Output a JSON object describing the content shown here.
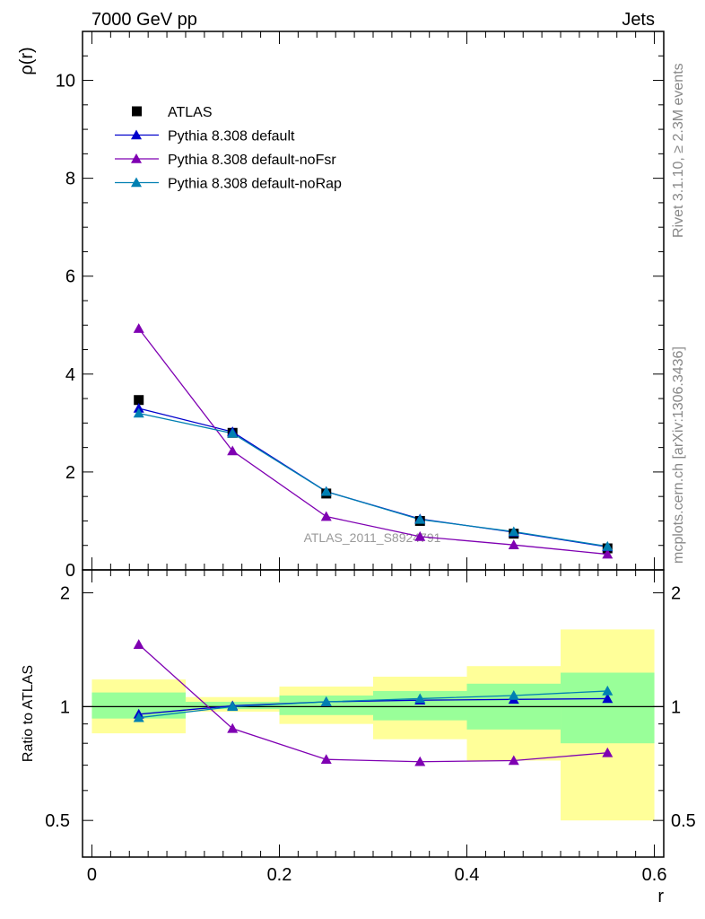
{
  "header": {
    "left": "7000 GeV pp",
    "right": "Jets"
  },
  "side": {
    "rivet": "Rivet 3.1.10, ≥ 2.3M events",
    "mcplots": "mcplots.cern.ch [arXiv:1306.3436]"
  },
  "watermark": "ATLAS_2011_S8924791",
  "colors": {
    "atlas": "#000000",
    "default": "#0000cc",
    "noFsr": "#7f00b2",
    "noRap": "#0080b2",
    "band_outer": "#ffff99",
    "band_inner": "#99ff99"
  },
  "chart_data": [
    {
      "type": "scatter",
      "panel": "main",
      "ylabel": "ρ(r)",
      "xlim": [
        -0.01,
        0.61
      ],
      "ylim": [
        0,
        11
      ],
      "yticks": [
        0,
        2,
        4,
        6,
        8,
        10
      ],
      "ytick_labels": [
        "0",
        "2",
        "4",
        "6",
        "8",
        "10"
      ],
      "legend_position": "top-left",
      "series": [
        {
          "name": "ATLAS",
          "marker": "square",
          "color_key": "atlas",
          "x": [
            0.05,
            0.15,
            0.25,
            0.35,
            0.45,
            0.55
          ],
          "y": [
            3.47,
            2.8,
            1.56,
            1.0,
            0.74,
            0.44
          ]
        },
        {
          "name": "Pythia 8.308 default",
          "marker": "triangle",
          "color_key": "default",
          "x": [
            0.05,
            0.15,
            0.25,
            0.35,
            0.45,
            0.55
          ],
          "y": [
            3.3,
            2.82,
            1.6,
            1.04,
            0.77,
            0.47
          ]
        },
        {
          "name": "Pythia 8.308 default-noFsr",
          "marker": "triangle",
          "color_key": "noFsr",
          "x": [
            0.05,
            0.15,
            0.25,
            0.35,
            0.45,
            0.55
          ],
          "y": [
            4.93,
            2.43,
            1.09,
            0.68,
            0.51,
            0.32
          ]
        },
        {
          "name": "Pythia 8.308 default-noRap",
          "marker": "triangle",
          "color_key": "noRap",
          "x": [
            0.05,
            0.15,
            0.25,
            0.35,
            0.45,
            0.55
          ],
          "y": [
            3.2,
            2.79,
            1.6,
            1.03,
            0.78,
            0.48
          ]
        }
      ]
    },
    {
      "type": "line",
      "panel": "ratio",
      "ylabel": "Ratio to ATLAS",
      "xlabel": "r",
      "xlim": [
        -0.01,
        0.61
      ],
      "ylim": [
        0.4,
        2.3
      ],
      "yticks": [
        0.5,
        1,
        2
      ],
      "ytick_labels": [
        "0.5",
        "1",
        "2"
      ],
      "xticks": [
        0,
        0.2,
        0.4,
        0.6
      ],
      "xtick_labels": [
        "0",
        "0.2",
        "0.4",
        "0.6"
      ],
      "bands": [
        {
          "x0": 0.0,
          "x1": 0.1,
          "outer": [
            0.85,
            1.18
          ],
          "inner": [
            0.93,
            1.09
          ]
        },
        {
          "x0": 0.1,
          "x1": 0.2,
          "outer": [
            0.97,
            1.06
          ],
          "inner": [
            0.985,
            1.03
          ]
        },
        {
          "x0": 0.2,
          "x1": 0.3,
          "outer": [
            0.9,
            1.13
          ],
          "inner": [
            0.95,
            1.07
          ]
        },
        {
          "x0": 0.3,
          "x1": 0.4,
          "outer": [
            0.82,
            1.2
          ],
          "inner": [
            0.92,
            1.1
          ]
        },
        {
          "x0": 0.4,
          "x1": 0.5,
          "outer": [
            0.72,
            1.28
          ],
          "inner": [
            0.87,
            1.15
          ]
        },
        {
          "x0": 0.5,
          "x1": 0.6,
          "outer": [
            0.5,
            1.6
          ],
          "inner": [
            0.8,
            1.23
          ]
        }
      ],
      "series": [
        {
          "name": "Pythia 8.308 default",
          "color_key": "default",
          "x": [
            0.05,
            0.15,
            0.25,
            0.35,
            0.45,
            0.55
          ],
          "y": [
            0.955,
            1.005,
            1.03,
            1.04,
            1.045,
            1.05
          ]
        },
        {
          "name": "Pythia 8.308 default-noFsr",
          "color_key": "noFsr",
          "x": [
            0.05,
            0.15,
            0.25,
            0.35,
            0.45,
            0.55
          ],
          "y": [
            1.46,
            0.875,
            0.725,
            0.715,
            0.72,
            0.755
          ]
        },
        {
          "name": "Pythia 8.308 default-noRap",
          "color_key": "noRap",
          "x": [
            0.05,
            0.15,
            0.25,
            0.35,
            0.45,
            0.55
          ],
          "y": [
            0.935,
            1.0,
            1.03,
            1.05,
            1.07,
            1.1
          ]
        }
      ]
    }
  ]
}
